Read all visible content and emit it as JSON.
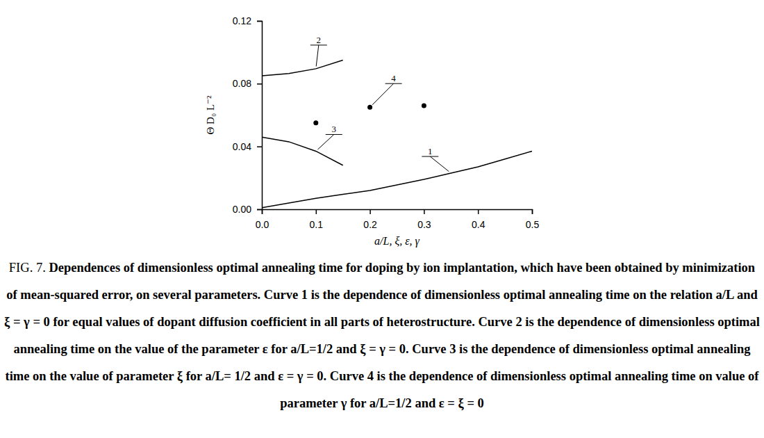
{
  "chart_data": {
    "type": "line",
    "xlabel": "a/L, ξ, ε, γ",
    "ylabel": "Θ D₀ L⁻²",
    "caption_label": "FIG. 7.",
    "caption": "Dependences of dimensionless optimal annealing time for doping by ion implantation, which have been obtained by minimization of mean-squared error, on several parameters. Curve 1 is the dependence of dimensionless optimal annealing time on the relation a/L and ξ = γ = 0 for equal values of dopant diffusion coefficient in all parts of heterostructure. Curve 2 is the dependence of dimensionless optimal annealing time on the value of the parameter ε for a/L=1/2 and ξ = γ = 0. Curve 3 is the dependence of dimensionless optimal annealing time on the value of parameter ξ for a/L= 1/2 and ε = γ = 0. Curve 4 is the dependence of dimensionless optimal annealing time on value of parameter γ for a/L=1/2 and ε  = ξ  = 0",
    "xlim": [
      0,
      0.5
    ],
    "ylim": [
      0,
      0.12
    ],
    "xticks": [
      {
        "value": 0,
        "label": "0.0"
      },
      0.1,
      0.2,
      0.3,
      0.4,
      0.5
    ],
    "yticks": [
      {
        "value": 0,
        "label": "0.00"
      },
      0.04,
      0.08,
      0.12
    ],
    "grid": false,
    "series": [
      {
        "name": "1",
        "color": "#000000",
        "type": "line",
        "line_style": "solid",
        "x": [
          0,
          0.05,
          0.1,
          0.15,
          0.2,
          0.25,
          0.3,
          0.35,
          0.4,
          0.45,
          0.5
        ],
        "values": [
          0.001,
          0.004,
          0.007,
          0.0095,
          0.012,
          0.0155,
          0.019,
          0.023,
          0.027,
          0.032,
          0.037
        ]
      },
      {
        "name": "2",
        "color": "#000000",
        "type": "line",
        "line_style": "solid",
        "x": [
          0,
          0.05,
          0.1,
          0.15
        ],
        "values": [
          0.085,
          0.0865,
          0.0895,
          0.095
        ]
      },
      {
        "name": "3",
        "color": "#000000",
        "type": "line",
        "line_style": "solid",
        "x": [
          0,
          0.05,
          0.1,
          0.15
        ],
        "values": [
          0.046,
          0.043,
          0.037,
          0.028
        ]
      },
      {
        "name": "4",
        "color": "#000000",
        "type": "scatter",
        "marker": "circle",
        "x": [
          0.1,
          0.2,
          0.3
        ],
        "values": [
          0.055,
          0.065,
          0.066
        ]
      }
    ]
  }
}
